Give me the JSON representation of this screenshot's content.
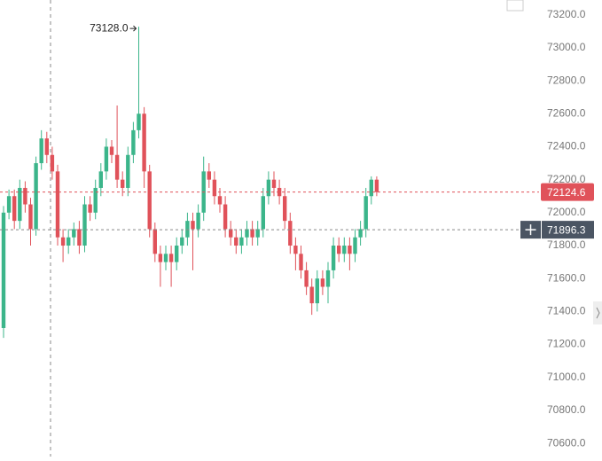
{
  "chart_data": {
    "type": "candlestick",
    "up_color": "#3bb58a",
    "down_color": "#e0525a",
    "open": [
      71300,
      72000,
      72100,
      71950,
      72150,
      72050,
      71900,
      72300,
      72450,
      72350,
      72250,
      71850,
      71800,
      71850,
      71900,
      71800,
      72050,
      72000,
      72150,
      72250,
      72400,
      72350,
      72200,
      72150,
      72350,
      72500,
      72600,
      72250,
      71900,
      71750,
      71700,
      71750,
      71700,
      71800,
      71850,
      71950,
      71900,
      72000,
      72250,
      72200,
      72100,
      72050,
      71900,
      71850,
      71800,
      71850,
      71900,
      71850,
      71900,
      72100,
      72200,
      72150,
      72100,
      71950,
      71800,
      71750,
      71650,
      71550,
      71450,
      71600,
      71550,
      71650,
      71800,
      71750,
      71800,
      71750,
      71850,
      71900,
      72100,
      72200
    ],
    "high": [
      72040,
      72140,
      72140,
      72200,
      72190,
      72090,
      72340,
      72500,
      72490,
      72400,
      72290,
      71900,
      71900,
      71940,
      71950,
      72100,
      72100,
      72200,
      72300,
      72450,
      72440,
      72650,
      72250,
      72400,
      72550,
      73128,
      72640,
      72290,
      71940,
      71800,
      71800,
      71800,
      71850,
      71900,
      72000,
      72000,
      72050,
      72340,
      72300,
      72250,
      72150,
      72100,
      71950,
      71900,
      71900,
      71950,
      71950,
      71950,
      72150,
      72250,
      72250,
      72200,
      72150,
      72000,
      71850,
      71800,
      71700,
      71600,
      71650,
      71650,
      71700,
      71850,
      71850,
      71850,
      71850,
      71900,
      71950,
      72150,
      72220,
      72220
    ],
    "low": [
      71240,
      71960,
      71900,
      71900,
      72000,
      71800,
      71860,
      72260,
      72300,
      72200,
      71800,
      71700,
      71750,
      71800,
      71750,
      71760,
      71950,
      71960,
      72100,
      72200,
      72300,
      72150,
      72100,
      72100,
      72300,
      72450,
      72150,
      71850,
      71700,
      71550,
      71650,
      71550,
      71650,
      71750,
      71800,
      71650,
      71850,
      71950,
      72150,
      72050,
      72000,
      71850,
      71800,
      71750,
      71750,
      71800,
      71800,
      71800,
      71850,
      72050,
      72100,
      72050,
      71900,
      71750,
      71650,
      71600,
      71500,
      71380,
      71400,
      71500,
      71450,
      71600,
      71700,
      71700,
      71650,
      71700,
      71800,
      71850,
      72050,
      72100
    ],
    "close": [
      72000,
      72100,
      71950,
      72150,
      72050,
      71900,
      72300,
      72450,
      72350,
      72250,
      71850,
      71800,
      71850,
      71900,
      71800,
      72050,
      72000,
      72150,
      72250,
      72400,
      72350,
      72200,
      72150,
      72350,
      72500,
      72600,
      72250,
      71900,
      71750,
      71700,
      71750,
      71700,
      71800,
      71850,
      71950,
      71900,
      72000,
      72250,
      72200,
      72100,
      72050,
      71900,
      71850,
      71800,
      71850,
      71900,
      71850,
      71900,
      72100,
      72200,
      72150,
      72100,
      71950,
      71800,
      71750,
      71650,
      71550,
      71450,
      71600,
      71550,
      71650,
      71800,
      71750,
      71800,
      71750,
      71850,
      71900,
      72100,
      72200,
      72124.6
    ],
    "high_annotation": {
      "value": 73128,
      "label": "73128.0"
    },
    "crosshair_price": 71896.3,
    "ylim": [
      70520,
      73290
    ],
    "yticks": [
      {
        "value": 70600,
        "label": "70600.0"
      },
      {
        "value": 70800,
        "label": "70800.0"
      },
      {
        "value": 71000,
        "label": "71000.0"
      },
      {
        "value": 71200,
        "label": "71200.0"
      },
      {
        "value": 71400,
        "label": "71400.0"
      },
      {
        "value": 71600,
        "label": "71600.0"
      },
      {
        "value": 71800,
        "label": "71800.0"
      },
      {
        "value": 72000,
        "label": "72000.0"
      },
      {
        "value": 72200,
        "label": "72200.0"
      },
      {
        "value": 72400,
        "label": "72400.0"
      },
      {
        "value": 72600,
        "label": "72600.0"
      },
      {
        "value": 72800,
        "label": "72800.0"
      },
      {
        "value": 73000,
        "label": "73000.0"
      },
      {
        "value": 73200,
        "label": "73200.0"
      }
    ]
  }
}
